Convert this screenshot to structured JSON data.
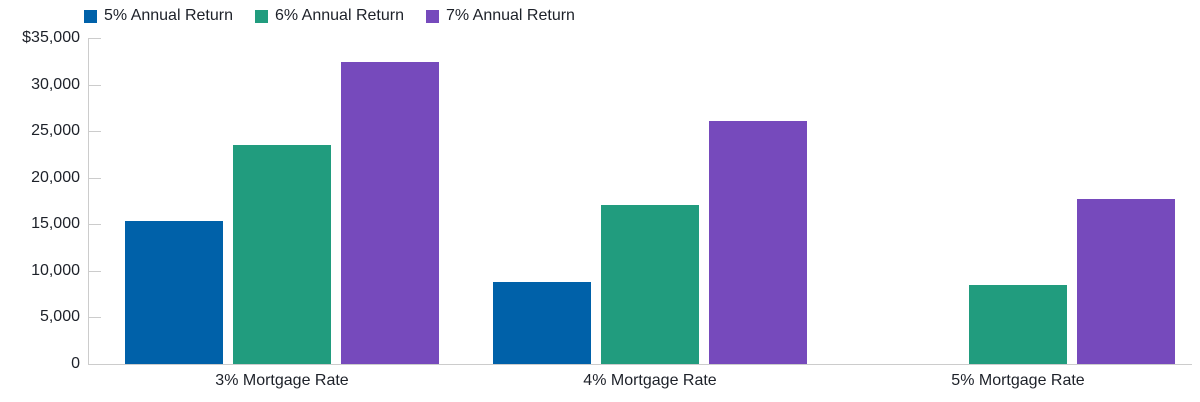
{
  "chart_data": {
    "type": "bar",
    "title": "",
    "xlabel": "",
    "ylabel": "",
    "categories": [
      "3% Mortgage Rate",
      "4% Mortgage Rate",
      "5% Mortgage Rate"
    ],
    "series": [
      {
        "name": "5% Annual Return",
        "color": "#0061A9",
        "values": [
          15400,
          8800,
          0
        ]
      },
      {
        "name": "6% Annual Return",
        "color": "#219C7E",
        "values": [
          23500,
          17100,
          8500
        ]
      },
      {
        "name": "7% Annual Return",
        "color": "#764ABC",
        "values": [
          32400,
          26100,
          17700
        ]
      }
    ],
    "ylim": [
      0,
      35000
    ],
    "yticks": [
      {
        "value": 35000,
        "label": "$35,000"
      },
      {
        "value": 30000,
        "label": "30,000"
      },
      {
        "value": 25000,
        "label": "25,000"
      },
      {
        "value": 20000,
        "label": "20,000"
      },
      {
        "value": 15000,
        "label": "15,000"
      },
      {
        "value": 10000,
        "label": "10,000"
      },
      {
        "value": 5000,
        "label": "5,000"
      },
      {
        "value": 0,
        "label": "0"
      }
    ],
    "legend_position": "top-left",
    "grid": "off",
    "axis_color": "#CCCCCC",
    "text_color": "#1D2129"
  }
}
